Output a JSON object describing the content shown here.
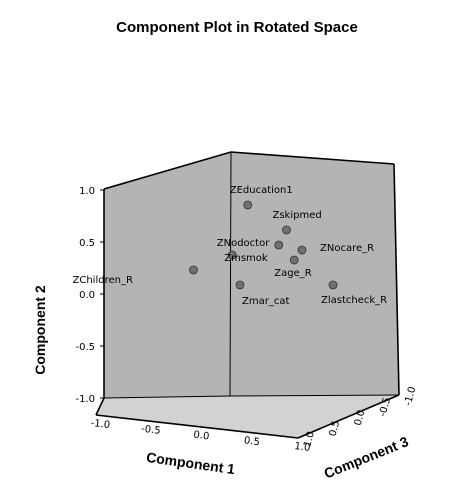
{
  "chart_data": {
    "type": "scatter",
    "projection": "3d",
    "title": "Component Plot in Rotated Space",
    "xlabel": "Component 1",
    "ylabel": "Component 2",
    "zlabel": "Component 3",
    "xlim": [
      -1.0,
      1.0
    ],
    "ylim": [
      -1.0,
      1.0
    ],
    "zlim": [
      -1.0,
      1.0
    ],
    "xticks": [
      "-1.0",
      "-0.5",
      "0.0",
      "0.5",
      "1.0"
    ],
    "yticks": [
      "1.0",
      "0.5",
      "0.0",
      "-0.5",
      "-1.0"
    ],
    "zticks": [
      "1.0",
      "0.5",
      "0.0",
      "-0.5",
      "-1.0"
    ],
    "points": [
      {
        "label": "ZEducation1",
        "x": 0.05,
        "y": 0.85,
        "z": 0.0
      },
      {
        "label": "Zskipmed",
        "x": 0.3,
        "y": 0.6,
        "z": 0.0
      },
      {
        "label": "ZNodoctor",
        "x": 0.25,
        "y": 0.45,
        "z": 0.0
      },
      {
        "label": "ZNocare_R",
        "x": 0.4,
        "y": 0.4,
        "z": 0.0
      },
      {
        "label": "Zmsmok",
        "x": -0.05,
        "y": 0.35,
        "z": 0.0
      },
      {
        "label": "Zage_R",
        "x": 0.35,
        "y": 0.3,
        "z": 0.0
      },
      {
        "label": "ZChildren_R",
        "x": -0.3,
        "y": 0.2,
        "z": 0.0
      },
      {
        "label": "Zmar_cat",
        "x": 0.0,
        "y": 0.05,
        "z": 0.0
      },
      {
        "label": "Zlastcheck_R",
        "x": 0.6,
        "y": 0.05,
        "z": 0.0
      }
    ],
    "point_color": "#707070",
    "wall_color": "#b4b4b4",
    "floor_color": "#d2d2d2"
  }
}
